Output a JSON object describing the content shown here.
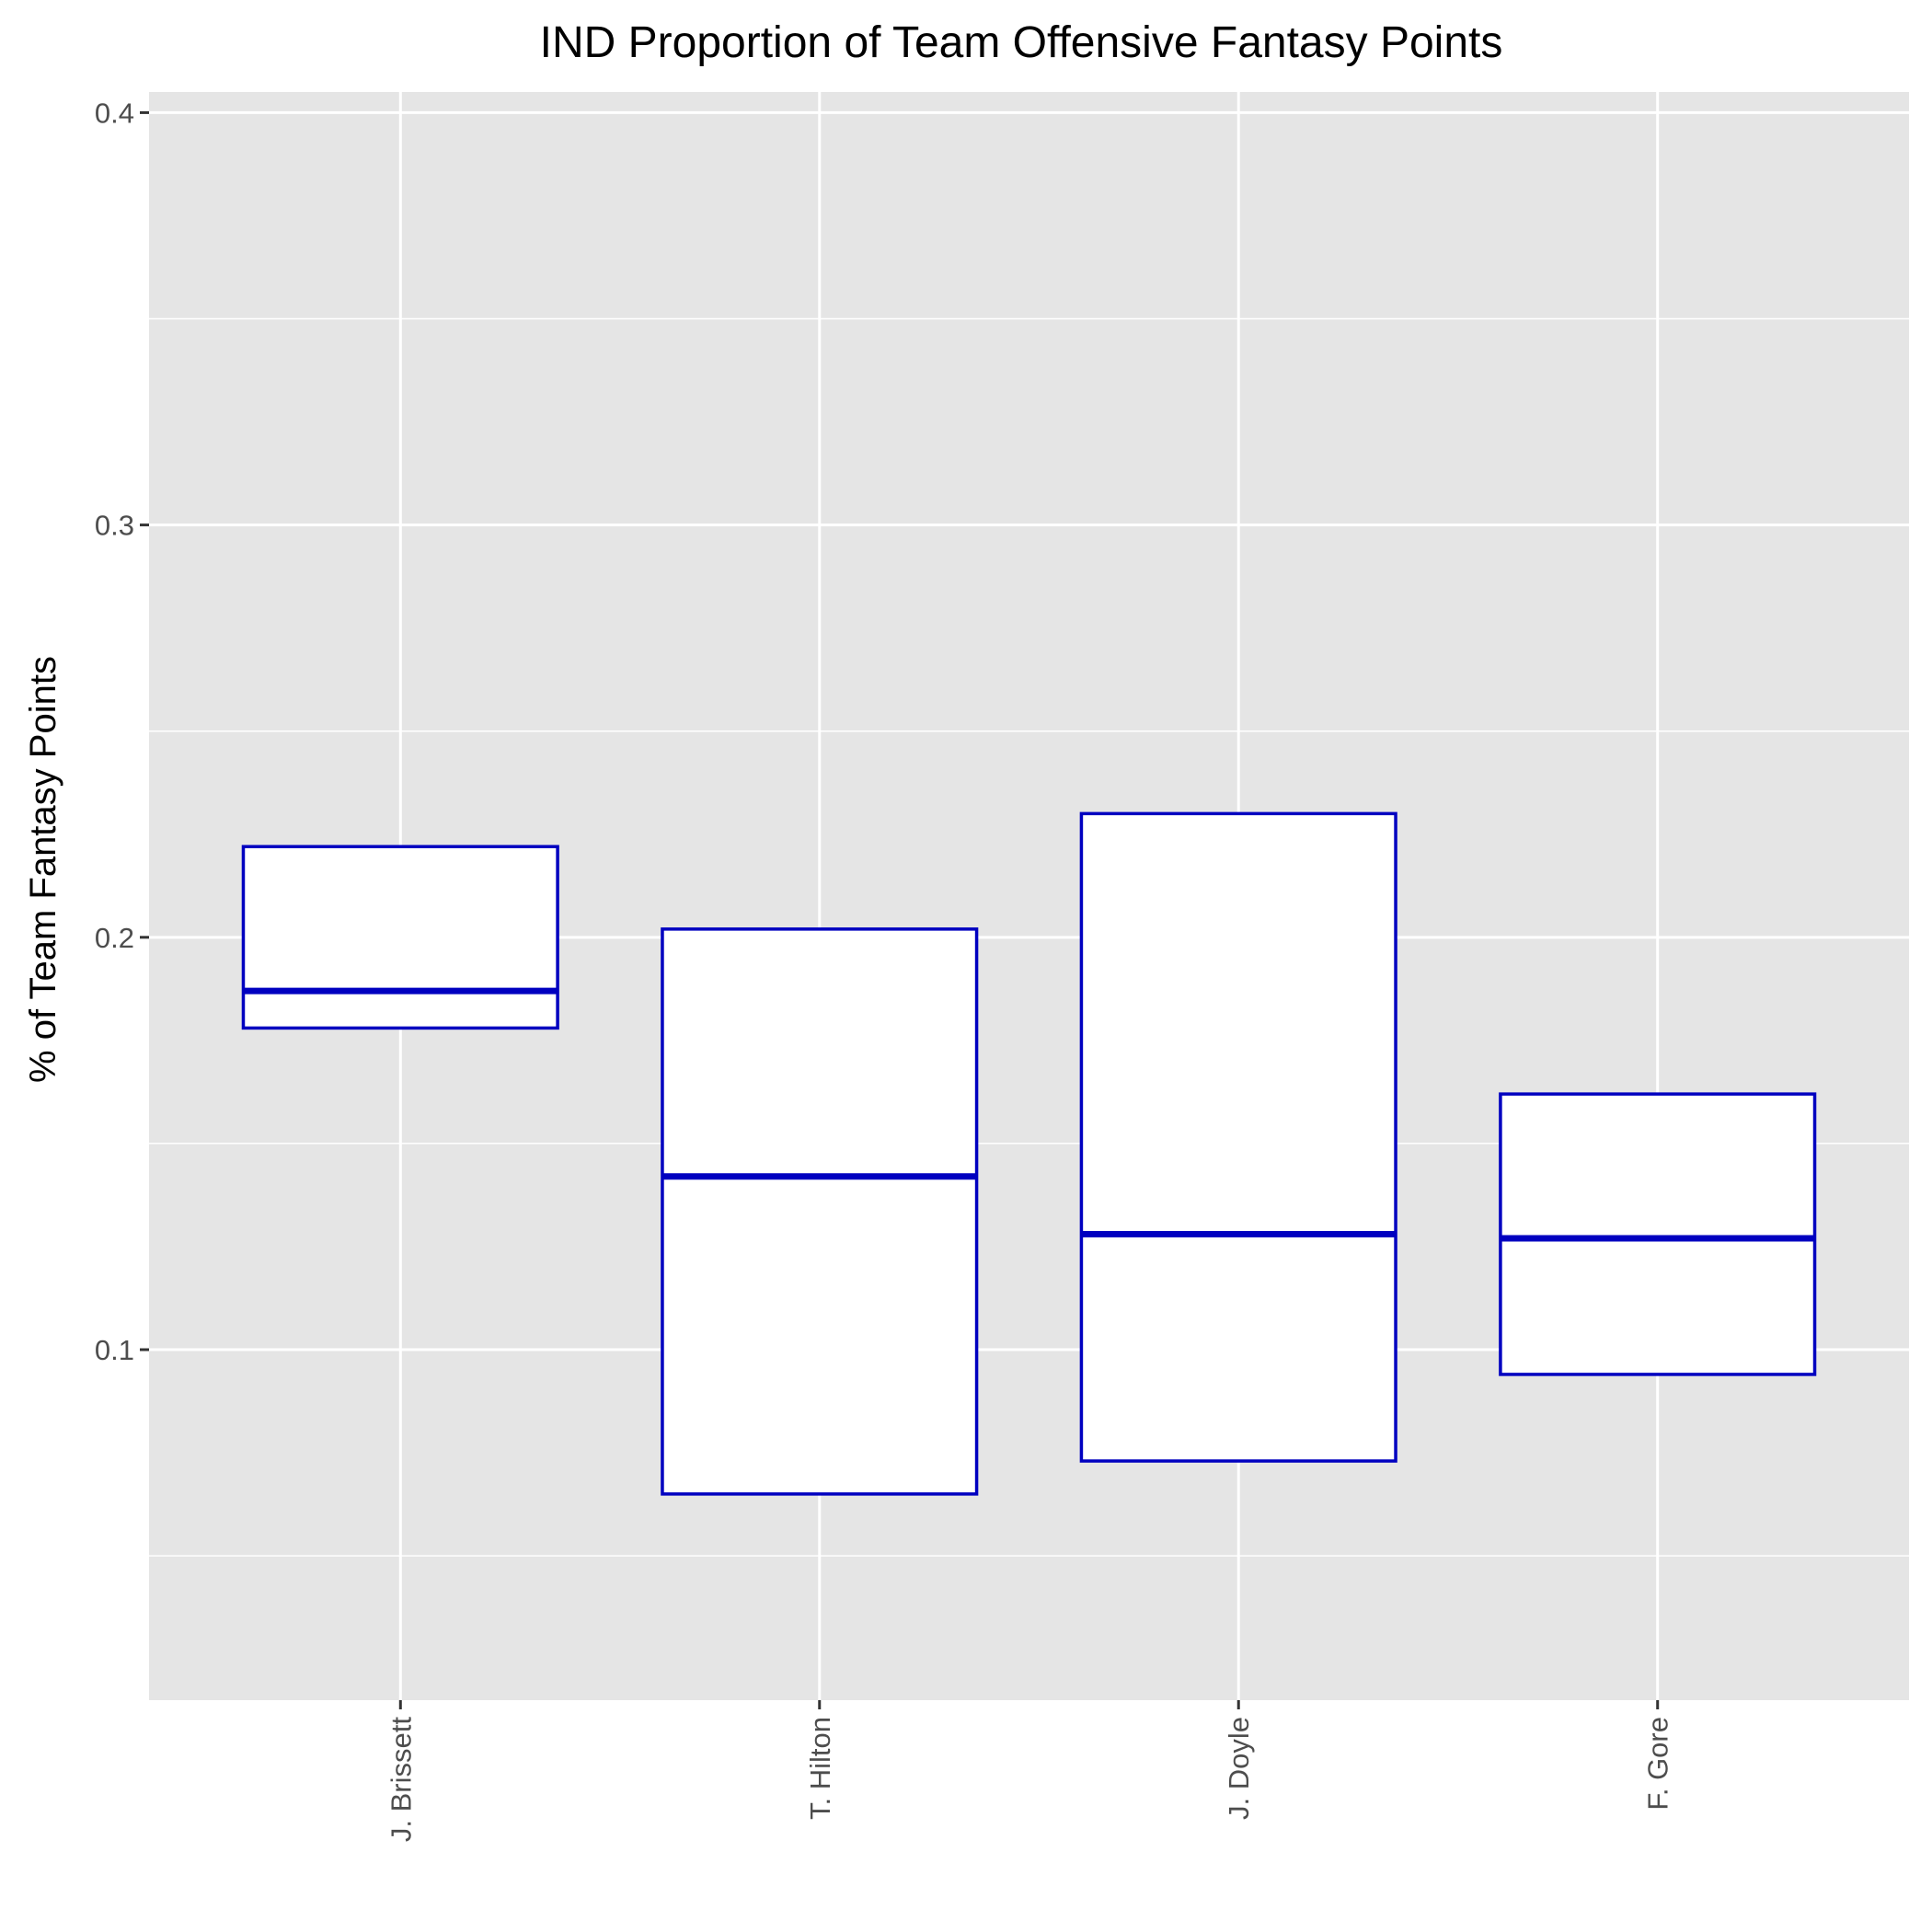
{
  "chart_data": {
    "type": "box",
    "title": "IND Proportion of Team Offensive Fantasy Points",
    "xlabel": "",
    "ylabel": "% of Team Fantasy Points",
    "ylim": [
      0.015,
      0.405
    ],
    "yticks": [
      0.1,
      0.2,
      0.3,
      0.4
    ],
    "ytick_labels": [
      "0.1",
      "0.2",
      "0.3",
      "0.4"
    ],
    "y_minor_gridlines": [
      0.05,
      0.15,
      0.25,
      0.35
    ],
    "categories": [
      "J. Brissett",
      "T. Hilton",
      "J. Doyle",
      "F. Gore"
    ],
    "boxes": [
      {
        "category": "J. Brissett",
        "q1": 0.178,
        "median": 0.187,
        "q3": 0.222
      },
      {
        "category": "T. Hilton",
        "q1": 0.065,
        "median": 0.142,
        "q3": 0.202
      },
      {
        "category": "J. Doyle",
        "q1": 0.073,
        "median": 0.128,
        "q3": 0.23
      },
      {
        "category": "F. Gore",
        "q1": 0.094,
        "median": 0.127,
        "q3": 0.162
      }
    ],
    "grid": true,
    "legend": "none",
    "colors": {
      "panel_background": "#e5e5e5",
      "grid_line": "#ffffff",
      "box_stroke": "#0000c0",
      "box_fill": "#ffffff",
      "tick_mark": "#333333"
    }
  }
}
